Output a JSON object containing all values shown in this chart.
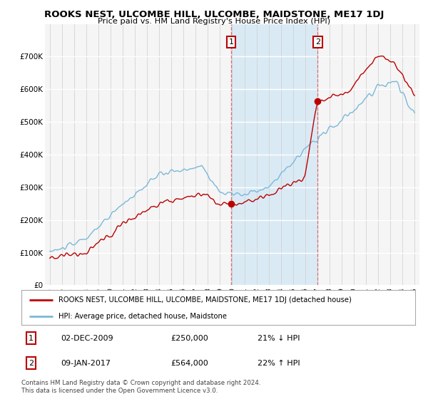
{
  "title": "ROOKS NEST, ULCOMBE HILL, ULCOMBE, MAIDSTONE, ME17 1DJ",
  "subtitle": "Price paid vs. HM Land Registry's House Price Index (HPI)",
  "legend_line1": "ROOKS NEST, ULCOMBE HILL, ULCOMBE, MAIDSTONE, ME17 1DJ (detached house)",
  "legend_line2": "HPI: Average price, detached house, Maidstone",
  "annotation1_date": "02-DEC-2009",
  "annotation1_price": "£250,000",
  "annotation1_change": "21% ↓ HPI",
  "annotation2_date": "09-JAN-2017",
  "annotation2_price": "£564,000",
  "annotation2_change": "22% ↑ HPI",
  "footer": "Contains HM Land Registry data © Crown copyright and database right 2024.\nThis data is licensed under the Open Government Licence v3.0.",
  "hpi_color": "#7ab8d9",
  "price_color": "#bb0000",
  "vline_color": "#e06060",
  "background_color": "#ffffff",
  "plot_bg_color": "#f5f5f5",
  "highlight_color": "#daeaf5",
  "ylim": [
    0,
    800000
  ],
  "yticks": [
    0,
    100000,
    200000,
    300000,
    400000,
    500000,
    600000,
    700000
  ],
  "ylabel_fmt": [
    "£0",
    "£100K",
    "£200K",
    "£300K",
    "£400K",
    "£500K",
    "£600K",
    "£700K"
  ],
  "sale1_year": 2009.917,
  "sale2_year": 2017.03,
  "sale1_price": 250000,
  "sale2_price": 564000
}
